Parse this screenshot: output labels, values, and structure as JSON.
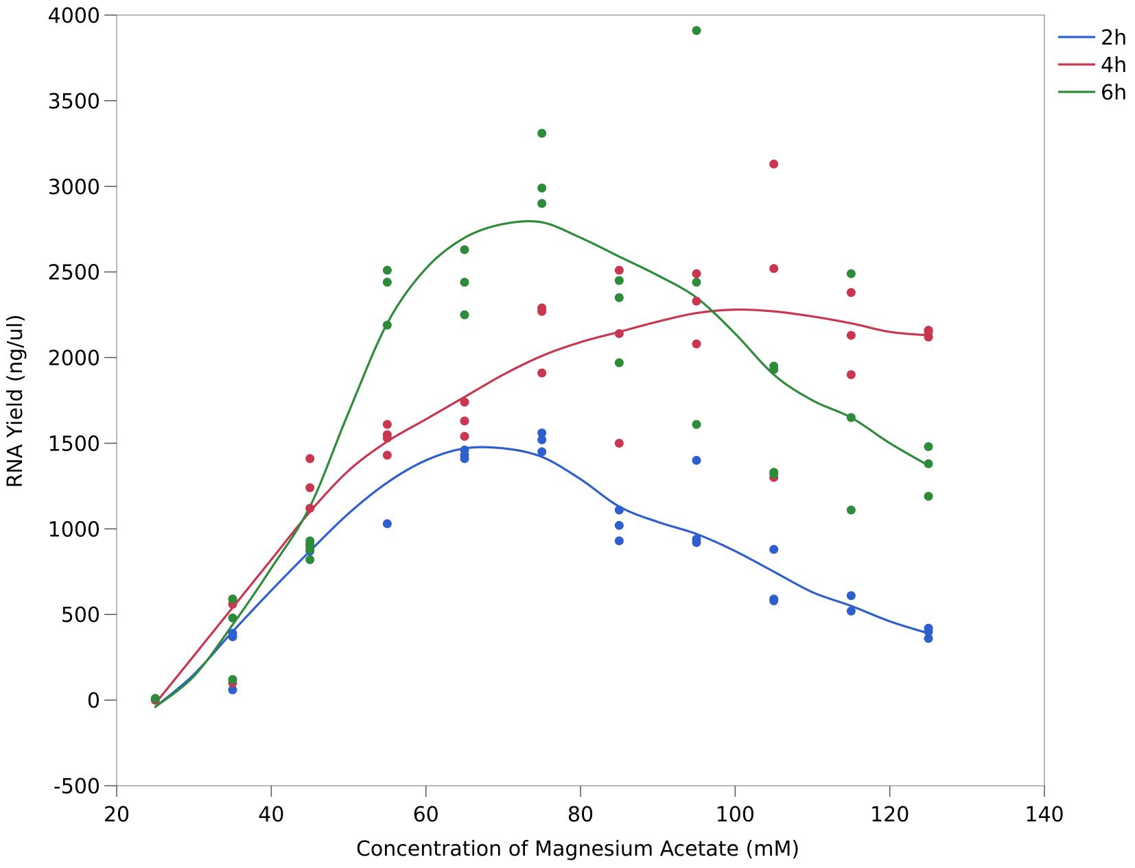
{
  "chart_data": {
    "type": "scatter",
    "title": "",
    "xlabel": "Concentration of Magnesium Acetate (mM)",
    "ylabel": "RNA Yield (ng/ul)",
    "xlim": [
      20,
      140
    ],
    "ylim": [
      -500,
      4000
    ],
    "xticks": [
      20,
      40,
      60,
      80,
      100,
      120,
      140
    ],
    "yticks": [
      -500,
      0,
      500,
      1000,
      1500,
      2000,
      2500,
      3000,
      3500,
      4000
    ],
    "x_tick_labels": [
      "20",
      "40",
      "60",
      "80",
      "100",
      "120",
      "140"
    ],
    "y_tick_labels": [
      "-500",
      "0",
      "500",
      "1000",
      "1500",
      "2000",
      "2500",
      "3000",
      "3500",
      "4000"
    ],
    "grid": false,
    "legend_position": "top-right",
    "series": [
      {
        "name": "2h",
        "color": "#2f5fcf",
        "points": [
          [
            25,
            0
          ],
          [
            35,
            60
          ],
          [
            35,
            370
          ],
          [
            35,
            390
          ],
          [
            45,
            870
          ],
          [
            45,
            900
          ],
          [
            55,
            1030
          ],
          [
            65,
            1410
          ],
          [
            65,
            1430
          ],
          [
            65,
            1460
          ],
          [
            75,
            1450
          ],
          [
            75,
            1520
          ],
          [
            75,
            1560
          ],
          [
            85,
            930
          ],
          [
            85,
            1020
          ],
          [
            85,
            1110
          ],
          [
            95,
            920
          ],
          [
            95,
            940
          ],
          [
            95,
            1400
          ],
          [
            105,
            580
          ],
          [
            105,
            590
          ],
          [
            105,
            880
          ],
          [
            115,
            520
          ],
          [
            115,
            610
          ],
          [
            125,
            360
          ],
          [
            125,
            400
          ],
          [
            125,
            420
          ]
        ],
        "fit": [
          [
            25,
            -40
          ],
          [
            30,
            150
          ],
          [
            35,
            400
          ],
          [
            40,
            640
          ],
          [
            45,
            870
          ],
          [
            50,
            1090
          ],
          [
            55,
            1270
          ],
          [
            60,
            1400
          ],
          [
            65,
            1470
          ],
          [
            70,
            1470
          ],
          [
            75,
            1420
          ],
          [
            80,
            1290
          ],
          [
            85,
            1130
          ],
          [
            90,
            1040
          ],
          [
            95,
            970
          ],
          [
            100,
            870
          ],
          [
            105,
            750
          ],
          [
            110,
            630
          ],
          [
            115,
            550
          ],
          [
            120,
            460
          ],
          [
            125,
            390
          ]
        ]
      },
      {
        "name": "4h",
        "color": "#c8364f",
        "points": [
          [
            25,
            0
          ],
          [
            35,
            100
          ],
          [
            35,
            560
          ],
          [
            35,
            590
          ],
          [
            45,
            1120
          ],
          [
            45,
            1240
          ],
          [
            45,
            1410
          ],
          [
            55,
            1430
          ],
          [
            55,
            1530
          ],
          [
            55,
            1550
          ],
          [
            55,
            1610
          ],
          [
            65,
            1540
          ],
          [
            65,
            1630
          ],
          [
            65,
            1740
          ],
          [
            75,
            1910
          ],
          [
            75,
            2270
          ],
          [
            75,
            2290
          ],
          [
            85,
            1500
          ],
          [
            85,
            2140
          ],
          [
            85,
            2510
          ],
          [
            95,
            2080
          ],
          [
            95,
            2330
          ],
          [
            95,
            2490
          ],
          [
            105,
            1300
          ],
          [
            105,
            2520
          ],
          [
            105,
            3130
          ],
          [
            115,
            1900
          ],
          [
            115,
            2130
          ],
          [
            115,
            2380
          ],
          [
            125,
            2120
          ],
          [
            125,
            2150
          ],
          [
            125,
            2160
          ]
        ],
        "fit": [
          [
            25,
            -20
          ],
          [
            30,
            260
          ],
          [
            35,
            540
          ],
          [
            40,
            820
          ],
          [
            45,
            1100
          ],
          [
            50,
            1340
          ],
          [
            55,
            1510
          ],
          [
            60,
            1640
          ],
          [
            65,
            1770
          ],
          [
            70,
            1900
          ],
          [
            75,
            2010
          ],
          [
            80,
            2090
          ],
          [
            85,
            2150
          ],
          [
            90,
            2210
          ],
          [
            95,
            2260
          ],
          [
            100,
            2280
          ],
          [
            105,
            2270
          ],
          [
            110,
            2240
          ],
          [
            115,
            2200
          ],
          [
            120,
            2150
          ],
          [
            125,
            2130
          ]
        ]
      },
      {
        "name": "6h",
        "color": "#2e8b3a",
        "points": [
          [
            25,
            10
          ],
          [
            35,
            120
          ],
          [
            35,
            480
          ],
          [
            35,
            590
          ],
          [
            45,
            820
          ],
          [
            45,
            880
          ],
          [
            45,
            910
          ],
          [
            45,
            930
          ],
          [
            55,
            2190
          ],
          [
            55,
            2440
          ],
          [
            55,
            2510
          ],
          [
            65,
            2250
          ],
          [
            65,
            2440
          ],
          [
            65,
            2630
          ],
          [
            75,
            2900
          ],
          [
            75,
            2990
          ],
          [
            75,
            3310
          ],
          [
            85,
            1970
          ],
          [
            85,
            2350
          ],
          [
            85,
            2450
          ],
          [
            95,
            1610
          ],
          [
            95,
            2440
          ],
          [
            95,
            3910
          ],
          [
            105,
            1320
          ],
          [
            105,
            1330
          ],
          [
            105,
            1930
          ],
          [
            105,
            1950
          ],
          [
            115,
            1110
          ],
          [
            115,
            1650
          ],
          [
            115,
            2490
          ],
          [
            125,
            1190
          ],
          [
            125,
            1380
          ],
          [
            125,
            1480
          ]
        ],
        "fit": [
          [
            25,
            -40
          ],
          [
            30,
            140
          ],
          [
            35,
            440
          ],
          [
            40,
            770
          ],
          [
            45,
            1130
          ],
          [
            50,
            1680
          ],
          [
            55,
            2200
          ],
          [
            60,
            2520
          ],
          [
            65,
            2700
          ],
          [
            70,
            2780
          ],
          [
            75,
            2790
          ],
          [
            80,
            2700
          ],
          [
            85,
            2590
          ],
          [
            90,
            2480
          ],
          [
            95,
            2350
          ],
          [
            100,
            2140
          ],
          [
            105,
            1900
          ],
          [
            110,
            1750
          ],
          [
            115,
            1650
          ],
          [
            120,
            1500
          ],
          [
            125,
            1370
          ]
        ]
      }
    ]
  }
}
